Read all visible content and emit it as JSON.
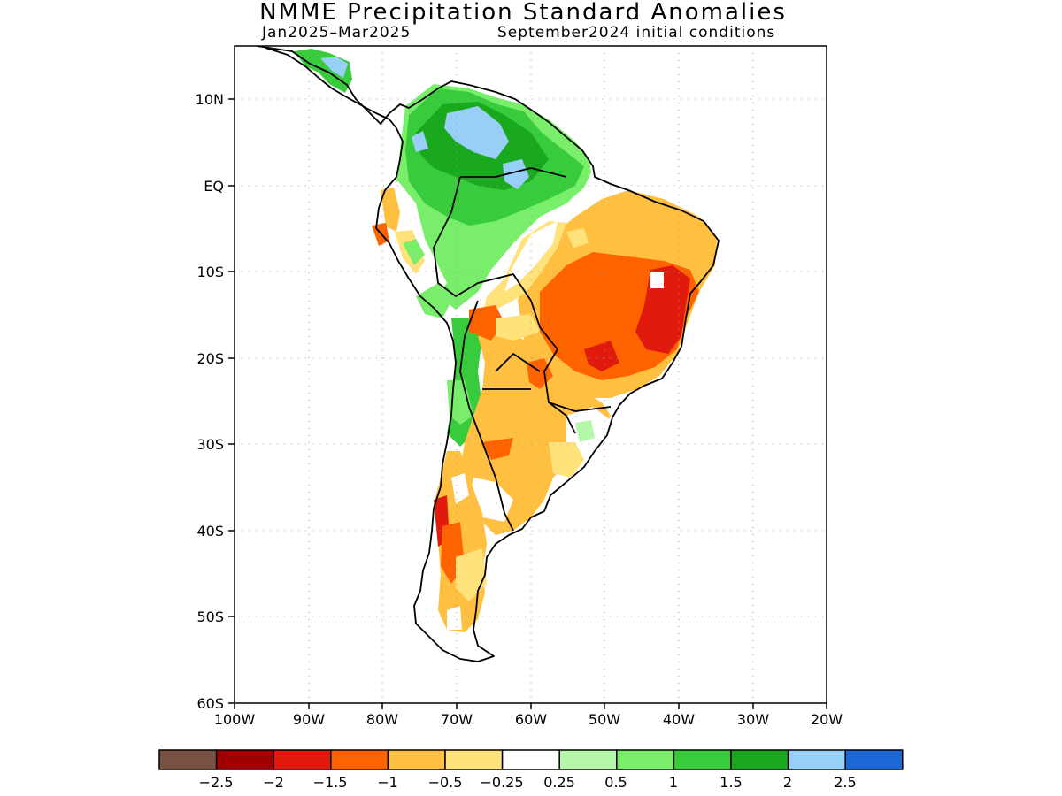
{
  "title": "NMME Precipitation Standard Anomalies",
  "subtitle_period": "Jan2025–Mar2025",
  "subtitle_init": "September2024 initial conditions",
  "map": {
    "region": "South America",
    "lat_labels": [
      "10N",
      "EQ",
      "10S",
      "20S",
      "30S",
      "40S",
      "50S",
      "60S"
    ],
    "lon_labels": [
      "100W",
      "90W",
      "80W",
      "70W",
      "60W",
      "50W",
      "40W",
      "30W",
      "20W"
    ],
    "grid": "dotted"
  },
  "colorbar": {
    "colors": [
      "#7a5043",
      "#a10000",
      "#e01b0e",
      "#ff6300",
      "#ffbf40",
      "#ffe27a",
      "#ffffff",
      "#b5f7a9",
      "#79ee6a",
      "#38cc3c",
      "#1aa81f",
      "#98cff6",
      "#1c68d8"
    ],
    "tick_labels": [
      "−2.5",
      "−2",
      "−1.5",
      "−1",
      "−0.5",
      "−0.25",
      "0.25",
      "0.5",
      "1",
      "1.5",
      "2",
      "2.5"
    ]
  },
  "chart_data": {
    "type": "heatmap",
    "variable": "Precipitation standard anomaly",
    "xlim": [
      -100,
      -20
    ],
    "ylim": [
      -60,
      15
    ],
    "regions": [
      {
        "area": "Northern South America / Amazon",
        "anomaly_range": [
          0.5,
          2.5
        ]
      },
      {
        "area": "Eastern Brazil",
        "anomaly_range": [
          -2.0,
          -0.5
        ]
      },
      {
        "area": "Northern Argentina / Paraguay",
        "anomaly_range": [
          -1.5,
          -0.25
        ]
      },
      {
        "area": "Southern Chile / Patagonia",
        "anomaly_range": [
          -1.5,
          -0.25
        ]
      },
      {
        "area": "Andes (Bolivia, N Chile)",
        "anomaly_range": [
          0.5,
          1.5
        ]
      }
    ]
  }
}
